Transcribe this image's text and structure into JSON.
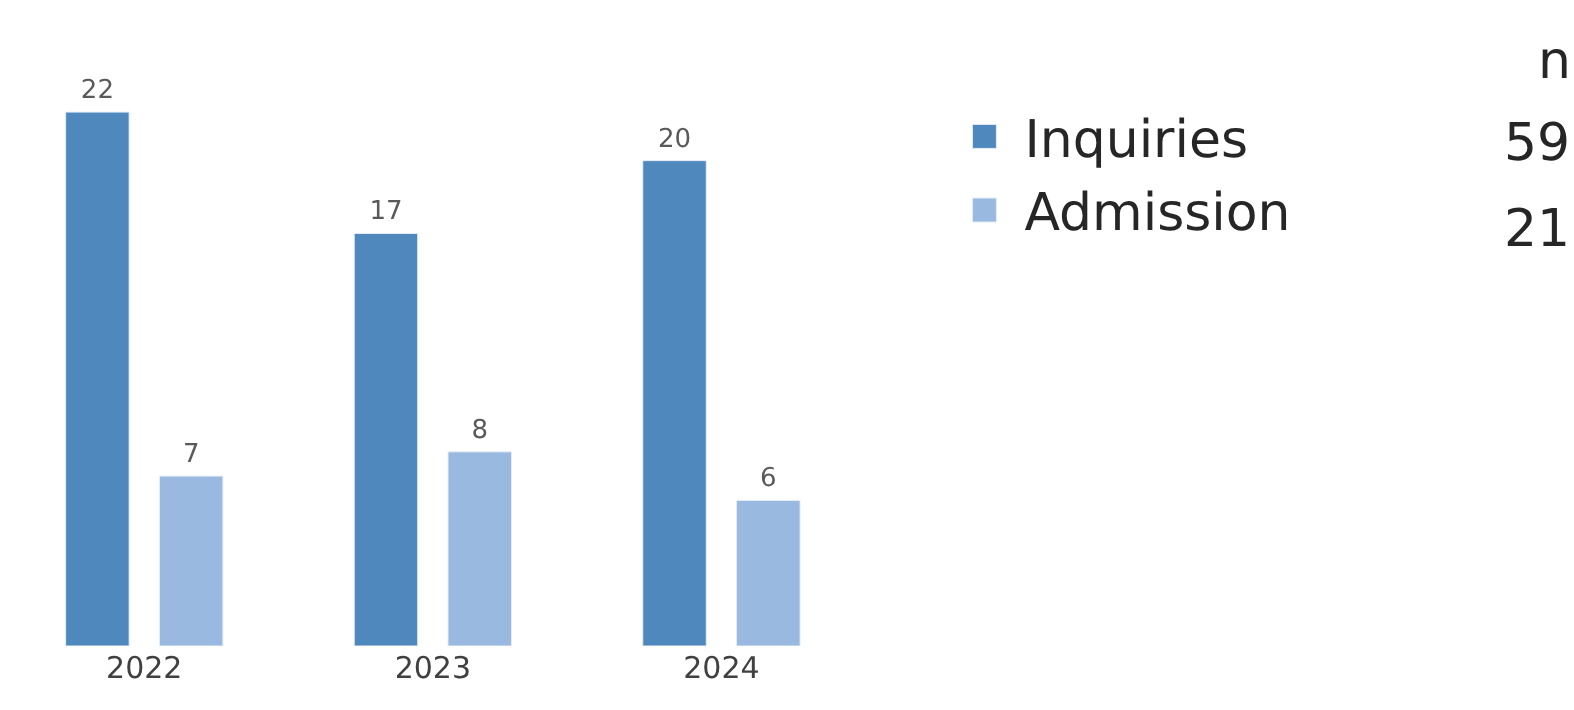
{
  "chart_data": {
    "type": "bar",
    "categories": [
      "2022",
      "2023",
      "2024"
    ],
    "series": [
      {
        "name": "Inquiries",
        "color": "#4f88bd",
        "values": [
          22,
          17,
          20
        ]
      },
      {
        "name": "Admission",
        "color": "#9ab9e0",
        "values": [
          7,
          8,
          6
        ]
      }
    ],
    "data_labels": true,
    "legend": "right",
    "legend_title": "n",
    "annotations": [
      "59",
      "21"
    ]
  }
}
